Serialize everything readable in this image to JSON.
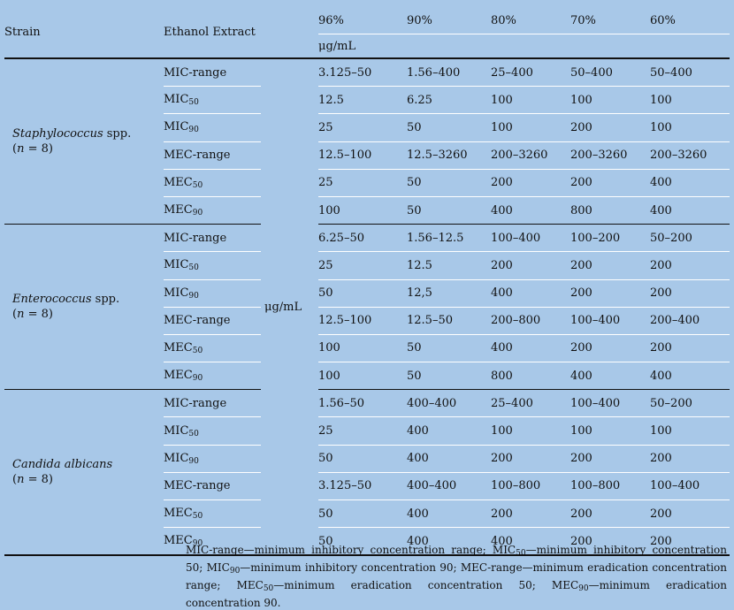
{
  "header": {
    "strain": "Strain",
    "extract": "Ethanol Extract",
    "concentrations": [
      "96%",
      "90%",
      "80%",
      "70%",
      "60%"
    ],
    "unit": "μg/mL"
  },
  "unit_label": "μg/mL",
  "groups": [
    {
      "name": "Staphylococcus",
      "suffix": " spp.",
      "n_text": "(n = 8)",
      "rows": [
        {
          "measure": "MIC-range",
          "values": [
            "3.125–50",
            "1.56–400",
            "25–400",
            "50–400",
            "50–400"
          ]
        },
        {
          "measure": "MIC50",
          "values": [
            "12.5",
            "6.25",
            "100",
            "100",
            "100"
          ]
        },
        {
          "measure": "MIC90",
          "values": [
            "25",
            "50",
            "100",
            "200",
            "100"
          ]
        },
        {
          "measure": "MEC-range",
          "values": [
            "12.5–100",
            "12.5–3260",
            "200–3260",
            "200–3260",
            "200–3260"
          ]
        },
        {
          "measure": "MEC50",
          "values": [
            "25",
            "50",
            "200",
            "200",
            "400"
          ]
        },
        {
          "measure": "MEC90",
          "values": [
            "100",
            "50",
            "400",
            "800",
            "400"
          ]
        }
      ]
    },
    {
      "name": "Enterococcus",
      "suffix": " spp.",
      "n_text": "(n = 8)",
      "rows": [
        {
          "measure": "MIC-range",
          "values": [
            "6.25–50",
            "1.56–12.5",
            "100–400",
            "100–200",
            "50–200"
          ]
        },
        {
          "measure": "MIC50",
          "values": [
            "25",
            "12.5",
            "200",
            "200",
            "200"
          ]
        },
        {
          "measure": "MIC90",
          "values": [
            "50",
            "12,5",
            "400",
            "200",
            "200"
          ]
        },
        {
          "measure": "MEC-range",
          "values": [
            "12.5–100",
            "12.5–50",
            "200–800",
            "100–400",
            "200–400"
          ]
        },
        {
          "measure": "MEC50",
          "values": [
            "100",
            "50",
            "400",
            "200",
            "200"
          ]
        },
        {
          "measure": "MEC90",
          "values": [
            "100",
            "50",
            "800",
            "400",
            "400"
          ]
        }
      ]
    },
    {
      "name": "Candida albicans",
      "suffix": "",
      "n_text": "(n = 8)",
      "rows": [
        {
          "measure": "MIC-range",
          "values": [
            "1.56–50",
            "400–400",
            "25–400",
            "100–400",
            "50–200"
          ]
        },
        {
          "measure": "MIC50",
          "values": [
            "25",
            "400",
            "100",
            "100",
            "100"
          ]
        },
        {
          "measure": "MIC90",
          "values": [
            "50",
            "400",
            "200",
            "200",
            "200"
          ]
        },
        {
          "measure": "MEC-range",
          "values": [
            "3.125–50",
            "400–400",
            "100–800",
            "100–800",
            "100–400"
          ]
        },
        {
          "measure": "MEC50",
          "values": [
            "50",
            "400",
            "200",
            "200",
            "200"
          ]
        },
        {
          "measure": "MEC90",
          "values": [
            "50",
            "400",
            "400",
            "200",
            "200"
          ]
        }
      ]
    }
  ],
  "footnote": "MIC-range—minimum inhibitory concentration range; MIC50—minimum inhibitory concentration 50; MIC90—minimum inhibitory concentration 90; MEC-range—minimum eradication concentration range; MEC50—minimum eradication concentration 50; MEC90—minimum eradication concentration 90."
}
